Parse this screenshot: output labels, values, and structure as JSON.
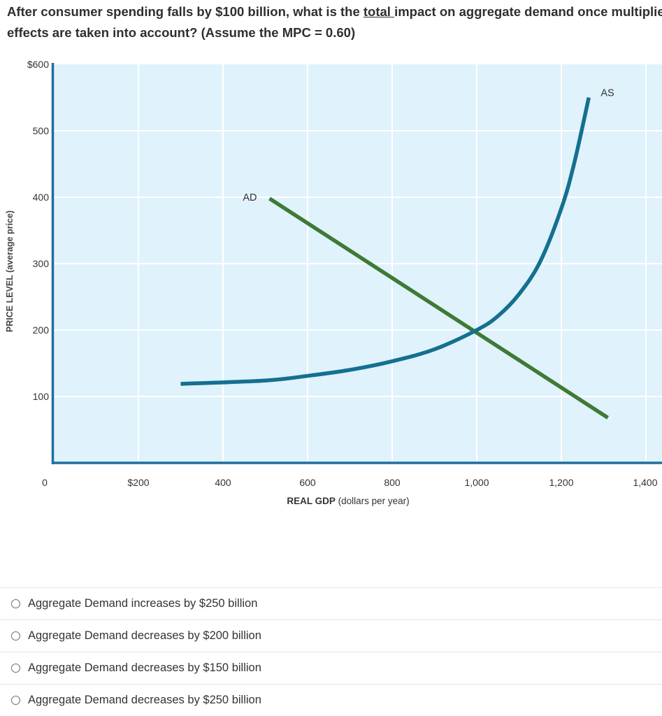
{
  "question": {
    "part1": "After consumer spending falls by $100 billion, what is the ",
    "emphasis": "total ",
    "part2": "impact on aggregate demand once multiplier",
    "line2": "effects are taken into account? (Assume the MPC = 0.60)"
  },
  "chart_data": {
    "type": "line",
    "xlabel_bold": "REAL GDP",
    "xlabel_rest": " (dollars per year)",
    "ylabel": "PRICE LEVEL (average price)",
    "xlim": [
      0,
      1400
    ],
    "ylim": [
      0,
      600
    ],
    "x_origin_label": "0",
    "x_ticks": [
      {
        "value": 200,
        "label": "$200"
      },
      {
        "value": 400,
        "label": "400"
      },
      {
        "value": 600,
        "label": "600"
      },
      {
        "value": 800,
        "label": "800"
      },
      {
        "value": 1000,
        "label": "1,000"
      },
      {
        "value": 1200,
        "label": "1,200"
      },
      {
        "value": 1400,
        "label": "1,400"
      }
    ],
    "y_ticks": [
      {
        "value": 100,
        "label": "100"
      },
      {
        "value": 200,
        "label": "200"
      },
      {
        "value": 300,
        "label": "300"
      },
      {
        "value": 400,
        "label": "400"
      },
      {
        "value": 500,
        "label": "500"
      },
      {
        "value": 600,
        "label": "$600"
      }
    ],
    "grid": true,
    "series": [
      {
        "name": "AD",
        "color": "#3e7a35",
        "x": [
          510,
          1310
        ],
        "y": [
          398,
          68
        ]
      },
      {
        "name": "AS",
        "color": "#14708f",
        "x": [
          300,
          500,
          600,
          700,
          800,
          900,
          1000,
          1050,
          1100,
          1150,
          1200,
          1230,
          1265
        ],
        "y": [
          119,
          124,
          131,
          140,
          153,
          171,
          200,
          221,
          254,
          303,
          383,
          450,
          550
        ]
      }
    ]
  },
  "choices": [
    {
      "label": "Aggregate Demand increases by $250 billion"
    },
    {
      "label": "Aggregate Demand decreases by $200 billion"
    },
    {
      "label": "Aggregate Demand decreases by $150 billion"
    },
    {
      "label": "Aggregate Demand decreases by $250 billion"
    }
  ]
}
